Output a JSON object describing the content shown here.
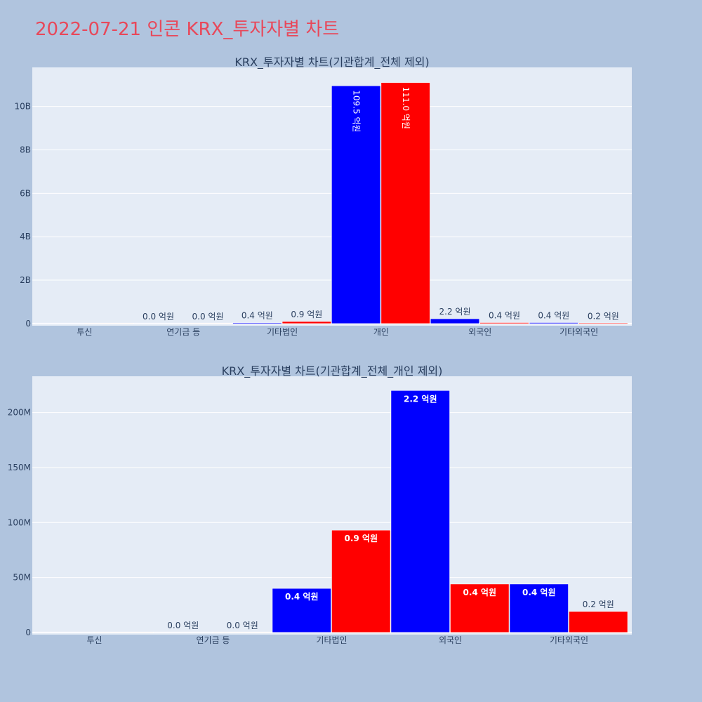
{
  "page_title": "2022-07-21 인콘 KRX_투자자별 차트",
  "colors": {
    "background": "#b0c4de",
    "plot_bg": "#e5ecf6",
    "grid": "#ffffff",
    "title": "#e8485a",
    "text": "#2a3f5f",
    "series_a": "#0000ff",
    "series_b": "#ff0000"
  },
  "chart_data": [
    {
      "type": "bar",
      "title": "KRX_투자자별 차트(기관합계_전체 제외)",
      "categories": [
        "투신",
        "연기금 등",
        "기타법인",
        "개인",
        "외국인",
        "기타외국인"
      ],
      "series": [
        {
          "color": "#0000ff",
          "values": [
            0,
            0,
            40000000,
            10950000000,
            220000000,
            44000000
          ],
          "labels": [
            "",
            "0.0 억원",
            "0.4 억원",
            "109.5 억원",
            "2.2 억원",
            "0.4 억원"
          ]
        },
        {
          "color": "#ff0000",
          "values": [
            0,
            0,
            93000000,
            11100000000,
            44000000,
            19000000
          ],
          "labels": [
            "",
            "0.0 억원",
            "0.9 억원",
            "111.0 억원",
            "0.4 억원",
            "0.2 억원"
          ]
        }
      ],
      "ylim": [
        -100000000,
        11800000000
      ],
      "yticks": [
        0,
        2000000000,
        4000000000,
        6000000000,
        8000000000,
        10000000000
      ],
      "ytick_labels": [
        "0",
        "2B",
        "4B",
        "6B",
        "8B",
        "10B"
      ],
      "grid": true
    },
    {
      "type": "bar",
      "title": "KRX_투자자별 차트(기관합계_전체_개인 제외)",
      "categories": [
        "투신",
        "연기금 등",
        "기타법인",
        "외국인",
        "기타외국인"
      ],
      "series": [
        {
          "color": "#0000ff",
          "values": [
            0,
            0,
            40000000,
            220000000,
            44000000
          ],
          "labels": [
            "",
            "0.0 억원",
            "0.4 억원",
            "2.2 억원",
            "0.4 억원"
          ]
        },
        {
          "color": "#ff0000",
          "values": [
            0,
            0,
            93000000,
            44000000,
            19000000
          ],
          "labels": [
            "",
            "0.0 억원",
            "0.9 억원",
            "0.4 억원",
            "0.2 억원"
          ]
        }
      ],
      "ylim": [
        -2000000,
        233000000
      ],
      "yticks": [
        0,
        50000000,
        100000000,
        150000000,
        200000000
      ],
      "ytick_labels": [
        "0",
        "50M",
        "100M",
        "150M",
        "200M"
      ],
      "grid": true
    }
  ]
}
